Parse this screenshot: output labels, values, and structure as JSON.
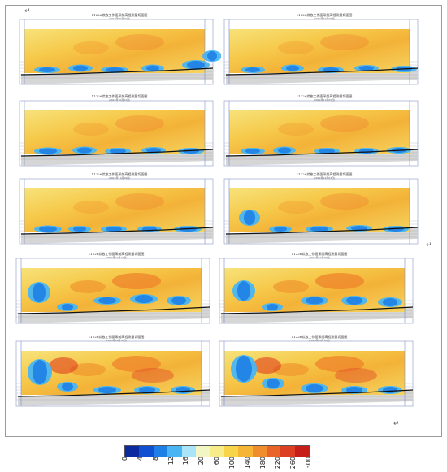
{
  "corner_mark": "↵",
  "panels": [
    {
      "title": "11226综放工作面采前高程测量切面图",
      "subtitle": "(2022年09月20日)"
    },
    {
      "title": "11226综放工作面采前高程测量切面图",
      "subtitle": "(2022年10月08日)"
    },
    {
      "title": "11226综放工作面采前高程测量切面图",
      "subtitle": "(2022年10月22日)"
    },
    {
      "title": "11226综放工作面采前高程测量切面图",
      "subtitle": "(2022年11月05日)"
    },
    {
      "title": "11226综放工作面采前高程测量切面图",
      "subtitle": "(2022年11月19日)"
    },
    {
      "title": "11226综放工作面采前高程测量切面图",
      "subtitle": "(2022年12月03日)"
    },
    {
      "title": "11226综放工作面采前高程测量切面图",
      "subtitle": "(2022年12月17日)"
    },
    {
      "title": "11226综放工作面采前高程测量切面图",
      "subtitle": "(2023年01月05日)"
    },
    {
      "title": "11226综放工作面采前高程测量切面图",
      "subtitle": "(2023年02月10日)"
    },
    {
      "title": "11226综放工作面采前高程测量切面图",
      "subtitle": "(2023年03月10日)"
    }
  ],
  "colorbar": {
    "ticks": [
      "0",
      "4",
      "8",
      "12",
      "16",
      "20",
      "60",
      "100",
      "140",
      "180",
      "220",
      "260",
      "300"
    ],
    "colors": [
      "#0a2a9e",
      "#1050d0",
      "#1e7fe6",
      "#49b5f2",
      "#a9e4f8",
      "#f2f5c4",
      "#f7ec8a",
      "#f6d54a",
      "#f5b635",
      "#f08d2c",
      "#e96428",
      "#dd3f22",
      "#c81e1a"
    ]
  }
}
